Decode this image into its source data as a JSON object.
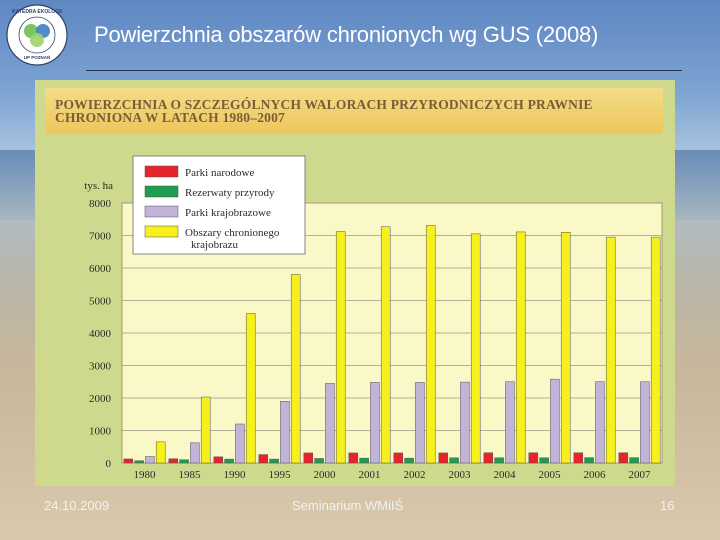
{
  "slide": {
    "title": "Powierzchnia obszarów chronionych wg GUS (2008)",
    "footer_date": "24.10.2009",
    "footer_center": "Seminarium WMiIŚ",
    "page_number": "16"
  },
  "logo": {
    "text_top": "KATEDRA EKOLOGII I OCHRONY ŚRODOWISKA",
    "text_bottom": "UP POZNAŃ"
  },
  "chart_data": {
    "type": "bar",
    "title": "POWIERZCHNIA O SZCZEGÓLNYCH WALORACH PRZYRODNICZYCH PRAWNIE CHRONIONA W LATACH 1980–2007",
    "title_line1": "POWIERZCHNIA O SZCZEGÓLNYCH WALORACH PRZYRODNICZYCH PRAWNIE",
    "title_line2": "CHRONIONA W LATACH 1980–2007",
    "ylabel": "tys. ha",
    "xlabel": "",
    "ylim": [
      0,
      8000
    ],
    "yticks": [
      "0",
      "1000",
      "2000",
      "3000",
      "4000",
      "5000",
      "6000",
      "7000",
      "8000"
    ],
    "grid": true,
    "legend_position": "top-left",
    "categories": [
      "1980",
      "1985",
      "1990",
      "1995",
      "2000",
      "2001",
      "2002",
      "2003",
      "2004",
      "2005",
      "2006",
      "2007"
    ],
    "series": [
      {
        "name": "Parki narodowe",
        "color": "#e8242a",
        "values": [
          125,
          130,
          190,
          260,
          310,
          310,
          310,
          310,
          315,
          315,
          315,
          315
        ]
      },
      {
        "name": "Rezerwaty przyrody",
        "color": "#1f9d4e",
        "values": [
          70,
          100,
          120,
          120,
          140,
          150,
          150,
          160,
          160,
          160,
          165,
          165
        ]
      },
      {
        "name": "Parki krajobrazowe",
        "color": "#c2b3d8",
        "values": [
          200,
          620,
          1200,
          1900,
          2450,
          2480,
          2480,
          2490,
          2500,
          2580,
          2500,
          2500
        ]
      },
      {
        "name": "Obszary chronionego krajobrazu",
        "color": "#f7f01c",
        "legend_lines": [
          "Obszary chronionego",
          "krajobrazu"
        ],
        "values": [
          650,
          2030,
          4600,
          5800,
          7120,
          7270,
          7310,
          7050,
          7110,
          7100,
          6950,
          6950
        ]
      }
    ]
  }
}
